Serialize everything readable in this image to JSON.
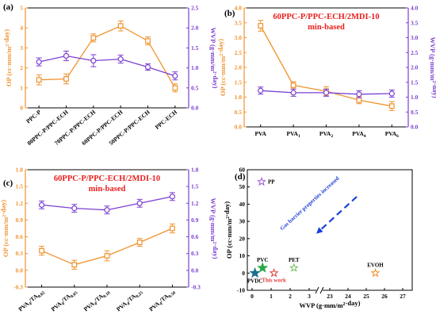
{
  "colors": {
    "op": "#f0932f",
    "wvp": "#7b3fd1",
    "title_red": "#e8201f",
    "pp": "#9b59d8",
    "pvdc": "#1d6f8f",
    "pvc": "#2ba84a",
    "this_work": "#e23b3b",
    "pet": "#6fbf5a",
    "evoh": "#f08c2a",
    "arrow": "#1b3fd8"
  },
  "chart_data": [
    {
      "type": "line",
      "panel": "(a)",
      "title": "",
      "categories": [
        "PPC-P",
        "80PPC-P/PPC-ECH",
        "70PPC-P/PPC-ECH",
        "60PPC-P/PPC-ECH",
        "50PPC-P/PPC-ECH",
        "PPC-ECH"
      ],
      "ylabel_left": "OP (cc·mm/m²·day)",
      "ylabel_right": "WVP (g·mm/m²·day)",
      "ylim_left": [
        0,
        5
      ],
      "ylim_right": [
        0,
        2.5
      ],
      "yticks_left": [
        "0",
        "1",
        "2",
        "3",
        "4",
        "5"
      ],
      "yticks_right": [
        "0.0",
        "0.5",
        "1.0",
        "1.5",
        "2.0",
        "2.5"
      ],
      "series": [
        {
          "values": [
            1.4,
            1.45,
            3.5,
            4.1,
            3.35,
            1.0
          ],
          "errors": [
            0.25,
            0.25,
            0.2,
            0.25,
            0.2,
            0.2
          ],
          "axis": "left"
        },
        {
          "values": [
            1.15,
            1.3,
            1.18,
            1.22,
            1.02,
            0.8
          ],
          "errors": [
            0.1,
            0.12,
            0.15,
            0.1,
            0.08,
            0.1
          ],
          "axis": "right"
        }
      ]
    },
    {
      "type": "line",
      "panel": "(b)",
      "title": "60PPC-P/PPC-ECH/2MDI-10",
      "subtitle": "min-based",
      "categories": [
        "PVA",
        "PVA1",
        "PVA2",
        "PVA4",
        "PVA6"
      ],
      "category_labels": [
        [
          "PVA",
          ""
        ],
        [
          "PVA",
          "1"
        ],
        [
          "PVA",
          "2"
        ],
        [
          "PVA",
          "4"
        ],
        [
          "PVA",
          "6"
        ]
      ],
      "ylabel_left": "OP (cc·mm/m²·day)",
      "ylabel_right": "WVP (g·mm/m²·day)",
      "ylim_left": [
        0,
        4
      ],
      "ylim_right": [
        0,
        4
      ],
      "yticks_left": [
        "0.0",
        "0.5",
        "1.0",
        "1.5",
        "2.0",
        "2.5",
        "3.0",
        "3.5",
        "4.0"
      ],
      "yticks_right": [
        "0.0",
        "0.5",
        "1.0",
        "1.5",
        "2.0",
        "2.5",
        "3.0",
        "3.5",
        "4.0"
      ],
      "series": [
        {
          "values": [
            3.4,
            1.4,
            1.2,
            0.9,
            0.7
          ],
          "errors": [
            0.18,
            0.12,
            0.15,
            0.12,
            0.15
          ],
          "axis": "left"
        },
        {
          "values": [
            1.22,
            1.15,
            1.15,
            1.1,
            1.12
          ],
          "errors": [
            0.12,
            0.12,
            0.12,
            0.12,
            0.12
          ],
          "axis": "right"
        }
      ]
    },
    {
      "type": "line",
      "panel": "(c)",
      "title": "60PPC-P/PPC-ECH/2MDI-10",
      "subtitle": "min-based",
      "categories": [
        "PVA4/TA0.02",
        "PVA4/TA0.05",
        "PVA4/TA0.10",
        "PVA4/TA0.25",
        "PVA4/TA0.50"
      ],
      "category_labels": [
        [
          "PVA",
          "4",
          "/TA",
          "0.02"
        ],
        [
          "PVA",
          "4",
          "/TA",
          "0.05"
        ],
        [
          "PVA",
          "4",
          "/TA",
          "0.10"
        ],
        [
          "PVA",
          "4",
          "/TA",
          "0.25"
        ],
        [
          "PVA",
          "4",
          "/TA",
          "0.50"
        ]
      ],
      "ylabel_left": "OP (cc·mm/m²·day)",
      "ylabel_right": "WVP (g·mm/m²·day)",
      "ylim_left": [
        -0.3,
        1.8
      ],
      "ylim_right": [
        -0.3,
        1.8
      ],
      "yticks_left": [
        "-0.3",
        "0.0",
        "0.3",
        "0.6",
        "0.9",
        "1.2",
        "1.5",
        "1.8"
      ],
      "yticks_right": [
        "-0.3",
        "0.0",
        "0.3",
        "0.6",
        "0.9",
        "1.2",
        "1.5",
        "1.8"
      ],
      "series": [
        {
          "values": [
            0.35,
            0.1,
            0.26,
            0.5,
            0.75
          ],
          "errors": [
            0.08,
            0.08,
            0.09,
            0.07,
            0.08
          ],
          "axis": "left"
        },
        {
          "values": [
            1.17,
            1.11,
            1.08,
            1.2,
            1.32
          ],
          "errors": [
            0.07,
            0.07,
            0.07,
            0.07,
            0.07
          ],
          "axis": "right"
        }
      ]
    },
    {
      "type": "scatter",
      "panel": "(d)",
      "title": "",
      "xlabel": "WVP (g·mm/m²·day)",
      "ylabel": "OP (cc·mm/m²·day)",
      "ylim": [
        -10,
        60
      ],
      "yticks": [
        "-10",
        "0",
        "10",
        "20",
        "30",
        "40",
        "50",
        "60"
      ],
      "xticks": [
        "0",
        "1",
        "2",
        "3",
        "23",
        "24",
        "25",
        "26",
        "27"
      ],
      "x_break": "3 // 23",
      "points": [
        {
          "label": "PP",
          "x": 0.5,
          "y": 53,
          "marker": "star-open",
          "color_key": "pp"
        },
        {
          "label": "PVDC",
          "x": 0.15,
          "y": 0,
          "marker": "star",
          "color_key": "pvdc"
        },
        {
          "label": "PVC",
          "x": 0.55,
          "y": 3,
          "marker": "star",
          "color_key": "pvc"
        },
        {
          "label": "This work",
          "x": 1.15,
          "y": 0,
          "marker": "star-open",
          "color_key": "this_work"
        },
        {
          "label": "PET",
          "x": 2.2,
          "y": 3,
          "marker": "star-open",
          "color_key": "pet"
        },
        {
          "label": "EVOH",
          "x": 25.5,
          "y": 0,
          "marker": "star-open",
          "color_key": "evoh"
        }
      ],
      "annotation": "Gas barrier properties increased"
    }
  ]
}
